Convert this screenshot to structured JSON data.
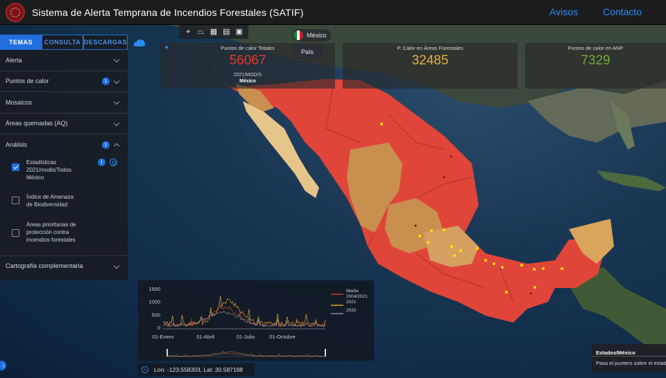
{
  "header": {
    "title": "Sistema de Alerta Temprana de Incendios Forestales (SATIF)",
    "links": [
      "Avisos",
      "Contacto"
    ]
  },
  "sidebar": {
    "tabs": [
      {
        "label": "TEMAS",
        "active": true
      },
      {
        "label": "CONSULTA",
        "active": false
      },
      {
        "label": "DESCARGAS",
        "active": false
      }
    ],
    "sections": [
      {
        "label": "Alerta",
        "badge": null,
        "expanded": false
      },
      {
        "label": "Puntos de calor",
        "badge": "1",
        "expanded": false
      },
      {
        "label": "Mosaicos",
        "badge": null,
        "expanded": false
      },
      {
        "label": "Áreas quemadas (AQ)",
        "badge": null,
        "expanded": false
      },
      {
        "label": "Análisis",
        "badge": "1",
        "expanded": true
      }
    ],
    "analysis_layers": [
      {
        "label_lines": [
          "Estadísticas",
          "2021/modis/Todos",
          "México"
        ],
        "checked": true
      },
      {
        "label_lines": [
          "Índice de Amenaza",
          "de Biodiversidad"
        ],
        "checked": false
      },
      {
        "label_lines": [
          "Áreas prioritarias de",
          "protección contra",
          "incendios forestales"
        ],
        "checked": false
      }
    ],
    "footer_section": {
      "label": "Cartografía complementaria",
      "expanded": false
    },
    "info_icon": "i"
  },
  "toolbar": {
    "tools": [
      "crosshair-icon",
      "polygon-icon",
      "table-icon",
      "layers-icon",
      "image-icon"
    ]
  },
  "country_selector": {
    "value": "México",
    "tooltip": "País"
  },
  "stats": {
    "total": {
      "label": "Puntos de calor Totales",
      "value": "56067",
      "sub": "2021/MODIS",
      "region": "México"
    },
    "forest": {
      "label": "P. Calor en Áreas Forestales",
      "value": "32485"
    },
    "anp": {
      "label": "Puntos de calor en ANP",
      "value": "7329"
    }
  },
  "chart_data": {
    "type": "line",
    "x": [
      "01-Enero",
      "01-Abril",
      "01-Julio",
      "01-Octubre"
    ],
    "y_ticks": [
      "0",
      "500",
      "1000",
      "1500"
    ],
    "ylim": [
      0,
      1500
    ],
    "series": [
      {
        "name": "Media 2004/2021",
        "color": "#d33a2c"
      },
      {
        "name": "2021",
        "color": "#e0a030"
      },
      {
        "name": "2020",
        "color": "#8a8f96"
      }
    ],
    "legend_lines": [
      [
        "Media",
        "2004/2021"
      ],
      [
        "2021"
      ],
      [
        "2020"
      ]
    ],
    "legend_position": "right"
  },
  "coords": {
    "text": "Lon: -123.558303, Lat: 30.587198"
  },
  "states_panel": {
    "title": "Estados/México",
    "body": "Pasa el puntero sobre el estado"
  },
  "colors": {
    "high": "#e0453a",
    "medium": "#c98f4e",
    "low": "#e6c58a",
    "hotspot": "#ffe000",
    "accent": "#1f6fe0",
    "link": "#2b8cf2"
  }
}
